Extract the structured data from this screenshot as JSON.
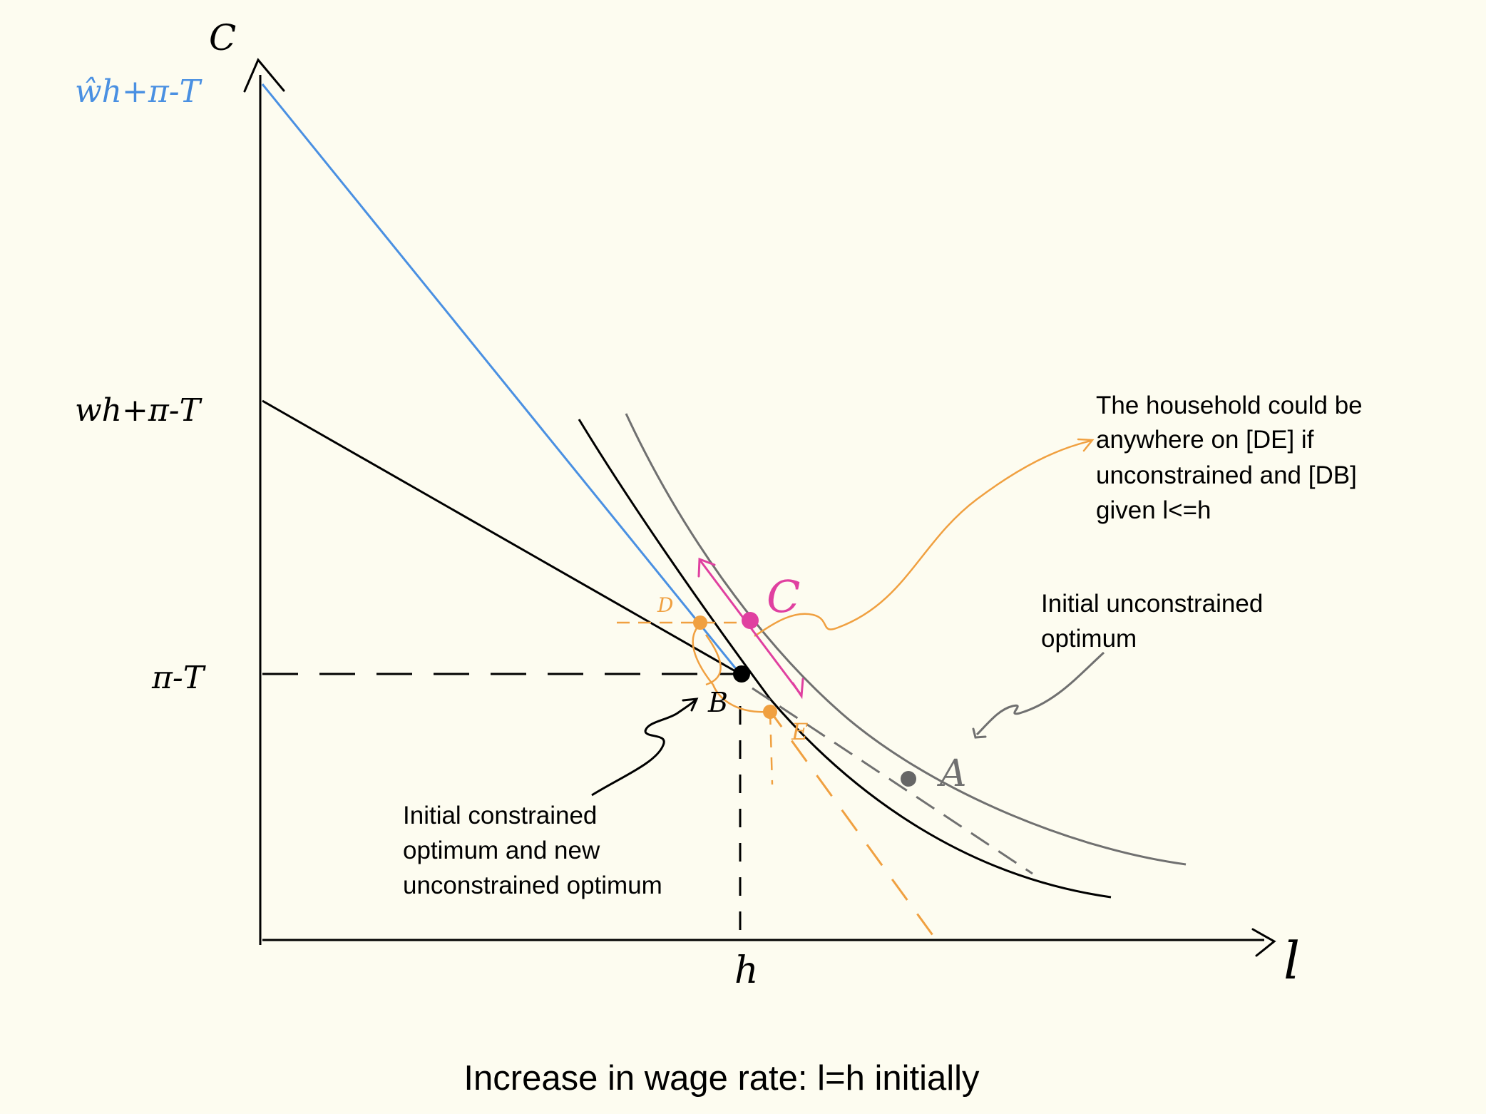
{
  "axes": {
    "y_label": "C",
    "x_label": "l",
    "y_ticks": [
      "ŵh+π-T",
      "wh+π-T",
      "π-T"
    ],
    "x_ticks": [
      "h"
    ]
  },
  "points": {
    "a": "A",
    "b": "B",
    "c": "C",
    "d": "D",
    "e": "E"
  },
  "annotations": {
    "de_note": [
      "The household could be",
      "anywhere on [DE] if",
      "unconstrained and [DB]",
      "given l<=h"
    ],
    "unconstrained_note": [
      "Initial unconstrained",
      "optimum"
    ],
    "constrained_note": [
      "Initial constrained",
      "optimum and new",
      "unconstrained optimum"
    ]
  },
  "caption": "Increase in wage rate: l=h initially",
  "colors": {
    "background": "#fdfcf0",
    "axis": "#000000",
    "new_budget": "#4a90e2",
    "old_budget": "#000000",
    "old_indifference": "#707070",
    "new_indifference": "#000000",
    "construction": "#f0a040",
    "point_c": "#e040a0",
    "point_b": "#000000",
    "point_a": "#666666"
  }
}
